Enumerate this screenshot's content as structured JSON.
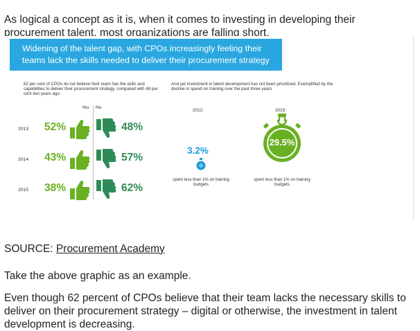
{
  "intro": "As logical a concept as it is, when it comes to investing in developing their procurement talent, most organizations are falling short.",
  "infographic": {
    "banner_line1": "Widening of the talent gap, with CPOs increasingly feeling their",
    "banner_line2": "teams lack the skills needed to deliver their procurement strategy",
    "left_text": "62 per cent of CPOs do not believe their team has the skills and capabilities to deliver their procurement strategy, compared with 48 per cent two years ago",
    "yes_label": "Yes",
    "no_label": "No",
    "rows": [
      {
        "year": "2013",
        "yes": "52%",
        "no": "48%"
      },
      {
        "year": "2014",
        "yes": "43%",
        "no": "57%"
      },
      {
        "year": "2015",
        "yes": "38%",
        "no": "62%"
      }
    ],
    "right_text": "And yet investment in talent development has not been prioritised. Exemplified by the decline in spend on training over the past three years",
    "year_a": "2012:",
    "year_b": "2015:",
    "value_a": "3.2%",
    "value_b": "29.5%",
    "note_a": "spent less than 1% on training budgets",
    "note_b": "spent less than 1% on training budgets",
    "colors": {
      "banner": "#2aa7e0",
      "yes": "#6ab023",
      "no": "#2e8b57",
      "blue": "#1f9ad8"
    }
  },
  "source_label": "SOURCE: ",
  "source_link": "Procurement Academy",
  "example": "Take the above graphic as an example.",
  "closing": "Even though 62 percent of CPOs believe that their team lacks the necessary skills to deliver on their procurement strategy – digital or otherwise, the investment in talent development is decreasing."
}
